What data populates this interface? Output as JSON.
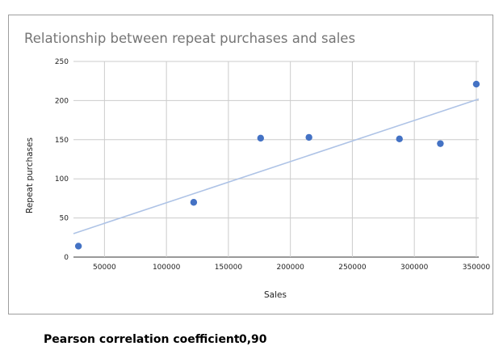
{
  "chart_data": {
    "type": "scatter",
    "title": "Relationship between repeat purchases and sales",
    "xlabel": "Sales",
    "ylabel": "Repeat purchases",
    "xlim": [
      25000,
      352000
    ],
    "ylim": [
      0,
      250
    ],
    "x_ticks": [
      50000,
      100000,
      150000,
      200000,
      250000,
      300000,
      350000
    ],
    "y_ticks": [
      0,
      50,
      100,
      150,
      200,
      250
    ],
    "grid": true,
    "point_color": "#4472c4",
    "trendline_color": "#aec3e6",
    "points": [
      {
        "x": 29000,
        "y": 14
      },
      {
        "x": 122000,
        "y": 70
      },
      {
        "x": 176000,
        "y": 152
      },
      {
        "x": 215000,
        "y": 153
      },
      {
        "x": 288000,
        "y": 151
      },
      {
        "x": 321000,
        "y": 145
      },
      {
        "x": 350000,
        "y": 221
      }
    ],
    "trendline": {
      "start": {
        "x": 25000,
        "y": 30
      },
      "end": {
        "x": 352000,
        "y": 202
      }
    }
  },
  "stats": {
    "label": "Pearson correlation coefficient",
    "value": "0,90"
  }
}
